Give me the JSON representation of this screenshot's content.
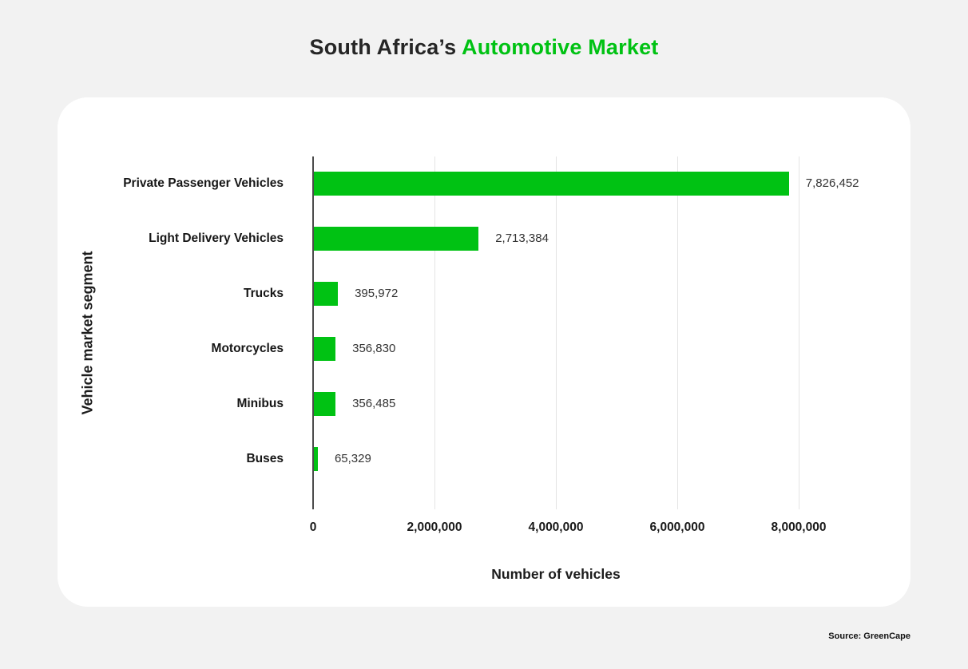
{
  "page": {
    "title": {
      "prefix": "South Africa’s ",
      "highlight": "Automotive Market"
    },
    "source": "Source: GreenCape"
  },
  "colors": {
    "accent_green": "#00c213",
    "page_background": "#f2f2f2",
    "card_background": "#ffffff",
    "gridline": "#e4e4e4",
    "axis_line": "#4a4a4a",
    "title_dark": "#262626"
  },
  "chart_data": {
    "type": "bar",
    "orientation": "horizontal",
    "title": "South Africa’s Automotive Market",
    "categories": [
      "Private Passenger Vehicles",
      "Light Delivery Vehicles",
      "Trucks",
      "Motorcycles",
      "Minibus",
      "Buses"
    ],
    "values": [
      7826452,
      2713384,
      395972,
      356830,
      356485,
      65329
    ],
    "value_labels": [
      "7,826,452",
      "2,713,384",
      "395,972",
      "356,830",
      "356,485",
      "65,329"
    ],
    "xlabel": "Number of vehicles",
    "ylabel": "Vehicle market segment",
    "xlim": [
      0,
      8400000
    ],
    "xticks": [
      0,
      2000000,
      4000000,
      6000000,
      8000000
    ],
    "xtick_labels": [
      "0",
      "2,000,000",
      "4,000,000",
      "6,000,000",
      "8,000,000"
    ],
    "grid": "vertical",
    "legend": "none",
    "bar_color": "#00c213"
  }
}
